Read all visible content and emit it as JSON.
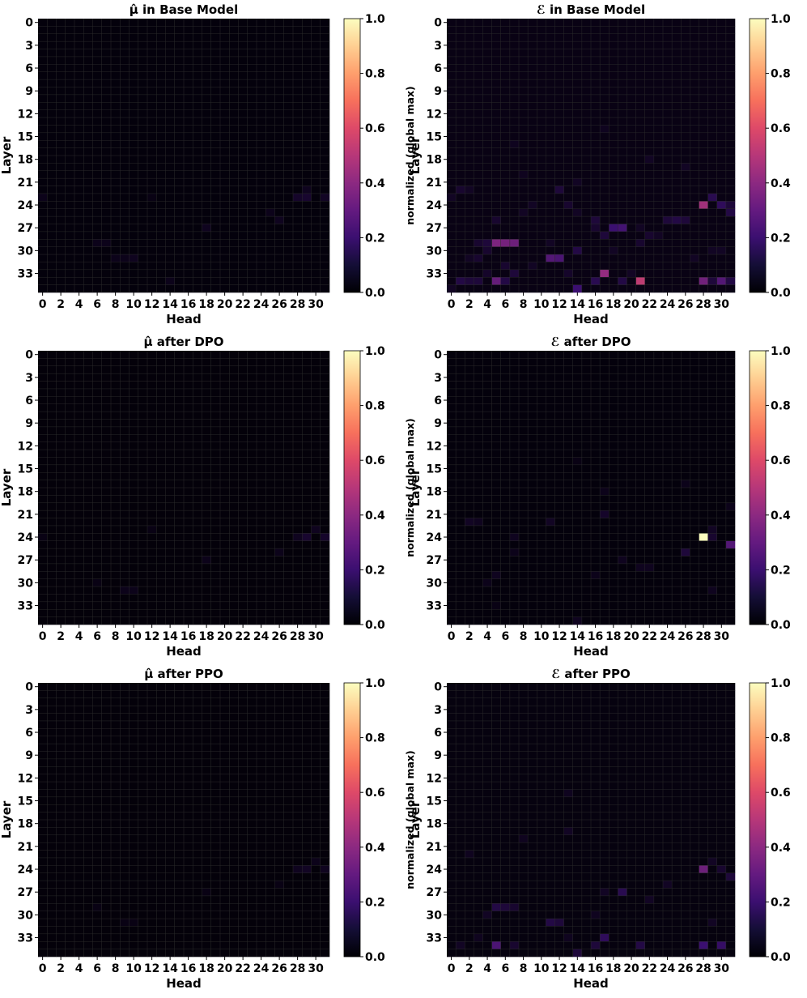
{
  "colormap": {
    "name": "magma",
    "stops": [
      "#000004",
      "#3b0f70",
      "#8c2981",
      "#de4968",
      "#fe9f6d",
      "#fcfdbf"
    ]
  },
  "chart_data": [
    {
      "type": "heatmap",
      "title": "μ̂ in Base Model",
      "xlabel": "Head",
      "ylabel": "Layer",
      "n_heads": 32,
      "n_layers": 36,
      "x_ticks": [
        0,
        2,
        4,
        6,
        8,
        10,
        12,
        14,
        16,
        18,
        20,
        22,
        24,
        26,
        28,
        30
      ],
      "y_ticks": [
        0,
        3,
        6,
        9,
        12,
        15,
        18,
        21,
        24,
        27,
        30,
        33
      ],
      "colorbar": {
        "label": "normalized (global max)",
        "range": [
          0,
          1
        ],
        "ticks": [
          "0.0",
          "0.2",
          "0.4",
          "0.6",
          "0.8",
          "1.0"
        ]
      },
      "base": 0.015,
      "cells": [
        [
          23,
          0,
          0.04
        ],
        [
          23,
          28,
          0.07
        ],
        [
          23,
          29,
          0.08
        ],
        [
          23,
          31,
          0.06
        ],
        [
          22,
          29,
          0.05
        ],
        [
          23,
          12,
          0.03
        ],
        [
          26,
          26,
          0.05
        ],
        [
          25,
          25,
          0.04
        ],
        [
          27,
          18,
          0.05
        ],
        [
          29,
          6,
          0.04
        ],
        [
          29,
          7,
          0.04
        ],
        [
          31,
          8,
          0.04
        ],
        [
          31,
          9,
          0.04
        ],
        [
          31,
          10,
          0.05
        ],
        [
          34,
          14,
          0.04
        ]
      ]
    },
    {
      "type": "heatmap",
      "title": "ℰ in Base Model",
      "xlabel": "Head",
      "ylabel": "Layer",
      "n_heads": 32,
      "n_layers": 36,
      "x_ticks": [
        0,
        2,
        4,
        6,
        8,
        10,
        12,
        14,
        16,
        18,
        20,
        22,
        24,
        26,
        28,
        30
      ],
      "y_ticks": [
        0,
        3,
        6,
        9,
        12,
        15,
        18,
        21,
        24,
        27,
        30,
        33
      ],
      "colorbar": {
        "label": "normalized (global max)",
        "range": [
          0,
          1
        ],
        "ticks": [
          "0.0",
          "0.2",
          "0.4",
          "0.6",
          "0.8",
          "1.0"
        ]
      },
      "base": 0.03,
      "cells": [
        [
          24,
          28,
          0.45
        ],
        [
          34,
          21,
          0.52
        ],
        [
          33,
          17,
          0.42
        ],
        [
          29,
          5,
          0.36
        ],
        [
          29,
          6,
          0.34
        ],
        [
          29,
          7,
          0.32
        ],
        [
          34,
          5,
          0.3
        ],
        [
          34,
          28,
          0.33
        ],
        [
          34,
          30,
          0.26
        ],
        [
          31,
          11,
          0.26
        ],
        [
          31,
          12,
          0.24
        ],
        [
          27,
          18,
          0.2
        ],
        [
          27,
          19,
          0.22
        ],
        [
          35,
          14,
          0.2
        ],
        [
          34,
          1,
          0.12
        ],
        [
          34,
          2,
          0.1
        ],
        [
          34,
          3,
          0.1
        ],
        [
          34,
          6,
          0.12
        ],
        [
          34,
          16,
          0.14
        ],
        [
          34,
          19,
          0.12
        ],
        [
          34,
          29,
          0.1
        ],
        [
          34,
          31,
          0.12
        ],
        [
          23,
          29,
          0.14
        ],
        [
          24,
          30,
          0.16
        ],
        [
          24,
          31,
          0.1
        ],
        [
          25,
          31,
          0.12
        ],
        [
          26,
          24,
          0.1
        ],
        [
          26,
          25,
          0.12
        ],
        [
          26,
          26,
          0.1
        ],
        [
          29,
          3,
          0.08
        ],
        [
          29,
          4,
          0.1
        ],
        [
          30,
          14,
          0.12
        ],
        [
          28,
          17,
          0.1
        ],
        [
          29,
          21,
          0.08
        ],
        [
          31,
          2,
          0.06
        ],
        [
          31,
          3,
          0.08
        ],
        [
          33,
          7,
          0.1
        ],
        [
          22,
          1,
          0.08
        ],
        [
          22,
          2,
          0.06
        ],
        [
          22,
          12,
          0.1
        ],
        [
          25,
          8,
          0.06
        ],
        [
          25,
          14,
          0.06
        ],
        [
          24,
          9,
          0.06
        ],
        [
          24,
          13,
          0.08
        ],
        [
          23,
          0,
          0.06
        ],
        [
          26,
          5,
          0.08
        ],
        [
          26,
          16,
          0.1
        ],
        [
          27,
          16,
          0.08
        ],
        [
          28,
          22,
          0.08
        ],
        [
          28,
          23,
          0.06
        ],
        [
          30,
          29,
          0.06
        ],
        [
          30,
          30,
          0.06
        ],
        [
          29,
          11,
          0.06
        ],
        [
          30,
          4,
          0.08
        ],
        [
          32,
          6,
          0.08
        ],
        [
          32,
          9,
          0.06
        ],
        [
          18,
          22,
          0.06
        ],
        [
          19,
          26,
          0.06
        ],
        [
          20,
          8,
          0.05
        ],
        [
          21,
          14,
          0.06
        ],
        [
          16,
          7,
          0.05
        ],
        [
          14,
          17,
          0.05
        ],
        [
          35,
          0,
          0.06
        ],
        [
          30,
          18,
          0.06
        ],
        [
          27,
          21,
          0.06
        ],
        [
          31,
          27,
          0.06
        ],
        [
          33,
          4,
          0.07
        ],
        [
          33,
          13,
          0.07
        ],
        [
          33,
          20,
          0.06
        ]
      ]
    },
    {
      "type": "heatmap",
      "title": "μ̂ after DPO",
      "xlabel": "Head",
      "ylabel": "Layer",
      "n_heads": 32,
      "n_layers": 36,
      "x_ticks": [
        0,
        2,
        4,
        6,
        8,
        10,
        12,
        14,
        16,
        18,
        20,
        22,
        24,
        26,
        28,
        30
      ],
      "y_ticks": [
        0,
        3,
        6,
        9,
        12,
        15,
        18,
        21,
        24,
        27,
        30,
        33
      ],
      "colorbar": {
        "label": "normalized (global max)",
        "range": [
          0,
          1
        ],
        "ticks": [
          "0.0",
          "0.2",
          "0.4",
          "0.6",
          "0.8",
          "1.0"
        ]
      },
      "base": 0.012,
      "cells": [
        [
          24,
          29,
          0.08
        ],
        [
          24,
          31,
          0.07
        ],
        [
          24,
          28,
          0.05
        ],
        [
          23,
          30,
          0.05
        ],
        [
          23,
          12,
          0.03
        ],
        [
          26,
          26,
          0.04
        ],
        [
          27,
          18,
          0.04
        ],
        [
          31,
          9,
          0.04
        ],
        [
          31,
          10,
          0.04
        ],
        [
          30,
          6,
          0.03
        ],
        [
          24,
          0,
          0.03
        ]
      ]
    },
    {
      "type": "heatmap",
      "title": "ℰ after DPO",
      "xlabel": "Head",
      "ylabel": "Layer",
      "n_heads": 32,
      "n_layers": 36,
      "x_ticks": [
        0,
        2,
        4,
        6,
        8,
        10,
        12,
        14,
        16,
        18,
        20,
        22,
        24,
        26,
        28,
        30
      ],
      "y_ticks": [
        0,
        3,
        6,
        9,
        12,
        15,
        18,
        21,
        24,
        27,
        30,
        33
      ],
      "colorbar": {
        "label": "normalized (global max)",
        "range": [
          0,
          1
        ],
        "ticks": [
          "0.0",
          "0.2",
          "0.4",
          "0.6",
          "0.8",
          "1.0"
        ]
      },
      "base": 0.015,
      "cells": [
        [
          24,
          28,
          1.0
        ],
        [
          25,
          31,
          0.26
        ],
        [
          26,
          26,
          0.1
        ],
        [
          24,
          29,
          0.08
        ],
        [
          23,
          29,
          0.06
        ],
        [
          22,
          2,
          0.06
        ],
        [
          22,
          3,
          0.05
        ],
        [
          21,
          17,
          0.07
        ],
        [
          22,
          11,
          0.06
        ],
        [
          24,
          7,
          0.05
        ],
        [
          28,
          21,
          0.05
        ],
        [
          28,
          22,
          0.05
        ],
        [
          27,
          19,
          0.05
        ],
        [
          29,
          5,
          0.05
        ],
        [
          30,
          4,
          0.04
        ],
        [
          31,
          29,
          0.05
        ],
        [
          20,
          31,
          0.04
        ],
        [
          35,
          14,
          0.05
        ],
        [
          18,
          17,
          0.04
        ],
        [
          17,
          26,
          0.04
        ],
        [
          14,
          14,
          0.03
        ],
        [
          26,
          7,
          0.04
        ],
        [
          29,
          16,
          0.04
        ],
        [
          33,
          5,
          0.03
        ]
      ]
    },
    {
      "type": "heatmap",
      "title": "μ̂ after PPO",
      "xlabel": "Head",
      "ylabel": "Layer",
      "n_heads": 32,
      "n_layers": 36,
      "x_ticks": [
        0,
        2,
        4,
        6,
        8,
        10,
        12,
        14,
        16,
        18,
        20,
        22,
        24,
        26,
        28,
        30
      ],
      "y_ticks": [
        0,
        3,
        6,
        9,
        12,
        15,
        18,
        21,
        24,
        27,
        30,
        33
      ],
      "colorbar": {
        "label": "normalized (global max)",
        "range": [
          0,
          1
        ],
        "ticks": [
          "0.0",
          "0.2",
          "0.4",
          "0.6",
          "0.8",
          "1.0"
        ]
      },
      "base": 0.012,
      "cells": [
        [
          24,
          29,
          0.06
        ],
        [
          24,
          28,
          0.05
        ],
        [
          24,
          31,
          0.05
        ],
        [
          23,
          30,
          0.04
        ],
        [
          26,
          26,
          0.03
        ],
        [
          27,
          18,
          0.03
        ],
        [
          29,
          6,
          0.03
        ],
        [
          31,
          9,
          0.03
        ],
        [
          31,
          10,
          0.03
        ]
      ]
    },
    {
      "type": "heatmap",
      "title": "ℰ after PPO",
      "xlabel": "Head",
      "ylabel": "Layer",
      "n_heads": 32,
      "n_layers": 36,
      "x_ticks": [
        0,
        2,
        4,
        6,
        8,
        10,
        12,
        14,
        16,
        18,
        20,
        22,
        24,
        26,
        28,
        30
      ],
      "y_ticks": [
        0,
        3,
        6,
        9,
        12,
        15,
        18,
        21,
        24,
        27,
        30,
        33
      ],
      "colorbar": {
        "label": "normalized (global max)",
        "range": [
          0,
          1
        ],
        "ticks": [
          "0.0",
          "0.2",
          "0.4",
          "0.6",
          "0.8",
          "1.0"
        ]
      },
      "base": 0.02,
      "cells": [
        [
          24,
          28,
          0.32
        ],
        [
          34,
          5,
          0.24
        ],
        [
          34,
          28,
          0.2
        ],
        [
          34,
          30,
          0.18
        ],
        [
          33,
          17,
          0.16
        ],
        [
          27,
          19,
          0.14
        ],
        [
          29,
          5,
          0.12
        ],
        [
          29,
          6,
          0.1
        ],
        [
          29,
          7,
          0.08
        ],
        [
          31,
          11,
          0.12
        ],
        [
          31,
          12,
          0.1
        ],
        [
          34,
          21,
          0.12
        ],
        [
          34,
          16,
          0.1
        ],
        [
          35,
          14,
          0.1
        ],
        [
          25,
          31,
          0.1
        ],
        [
          24,
          30,
          0.08
        ],
        [
          23,
          29,
          0.06
        ],
        [
          26,
          24,
          0.06
        ],
        [
          28,
          22,
          0.06
        ],
        [
          30,
          4,
          0.06
        ],
        [
          34,
          1,
          0.06
        ],
        [
          34,
          7,
          0.08
        ],
        [
          22,
          2,
          0.05
        ],
        [
          20,
          8,
          0.05
        ],
        [
          19,
          13,
          0.06
        ],
        [
          14,
          13,
          0.05
        ],
        [
          27,
          17,
          0.06
        ],
        [
          31,
          29,
          0.06
        ],
        [
          33,
          3,
          0.05
        ],
        [
          33,
          13,
          0.05
        ],
        [
          30,
          16,
          0.05
        ]
      ]
    }
  ]
}
